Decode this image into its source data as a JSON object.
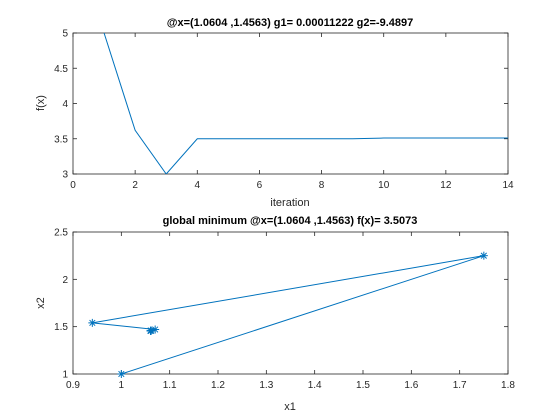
{
  "chart_data": [
    {
      "type": "line",
      "title": "@x=(1.0604 ,1.4563) g1= 0.00011222 g2=-9.4897",
      "xlabel": "iteration",
      "ylabel": "f(x)",
      "xlim": [
        0,
        14
      ],
      "ylim": [
        3,
        5
      ],
      "xticks": [
        "0",
        "2",
        "4",
        "6",
        "8",
        "10",
        "12",
        "14"
      ],
      "yticks": [
        "3",
        "3.5",
        "4",
        "4.5",
        "5"
      ],
      "grid": false,
      "color": "#0072BD",
      "series": [
        {
          "x": [
            1,
            2,
            3,
            4,
            5,
            6,
            7,
            8,
            9,
            10,
            11,
            12,
            13,
            14
          ],
          "y": [
            5.0,
            3.62,
            3.0,
            3.5,
            3.5,
            3.5,
            3.5,
            3.5,
            3.5,
            3.51,
            3.51,
            3.51,
            3.51,
            3.51
          ]
        }
      ]
    },
    {
      "type": "line",
      "title": "global minimum @x=(1.0604 ,1.4563) f(x)= 3.5073",
      "xlabel": "x1",
      "ylabel": "x2",
      "xlim": [
        0.9,
        1.8
      ],
      "ylim": [
        1,
        2.5
      ],
      "xticks": [
        "0.9",
        "1",
        "1.1",
        "1.2",
        "1.3",
        "1.4",
        "1.5",
        "1.6",
        "1.7",
        "1.8"
      ],
      "yticks": [
        "1",
        "1.5",
        "2",
        "2.5"
      ],
      "grid": false,
      "marker": "asterisk",
      "color": "#0072BD",
      "series": [
        {
          "x": [
            1.0,
            1.75,
            0.94,
            1.07,
            1.062,
            1.061,
            1.0604,
            1.0604,
            1.0604
          ],
          "y": [
            1.0,
            2.25,
            1.54,
            1.47,
            1.458,
            1.457,
            1.4563,
            1.4563,
            1.4563
          ]
        }
      ]
    }
  ]
}
